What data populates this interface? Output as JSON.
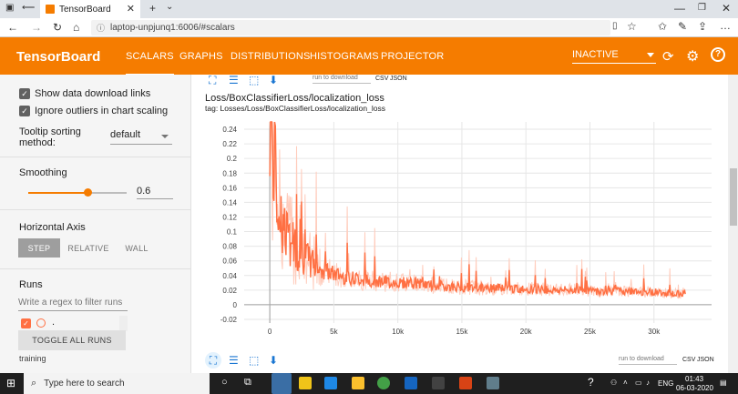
{
  "browser": {
    "tab_title": "TensorBoard",
    "url": "laptop-unpjunq1:6006/#scalars"
  },
  "header": {
    "brand": "TensorBoard",
    "tabs": [
      {
        "label": "SCALARS",
        "active": true
      },
      {
        "label": "GRAPHS",
        "active": false
      },
      {
        "label": "DISTRIBUTIONS",
        "active": false
      },
      {
        "label": "HISTOGRAMS",
        "active": false
      },
      {
        "label": "PROJECTOR",
        "active": false
      }
    ],
    "status_select": "INACTIVE",
    "accent_color": "#f57c00"
  },
  "sidebar": {
    "show_download_links": {
      "label": "Show data download links",
      "checked": true
    },
    "ignore_outliers": {
      "label": "Ignore outliers in chart scaling",
      "checked": true
    },
    "tooltip_sorting": {
      "label": "Tooltip sorting method:",
      "value": "default"
    },
    "smoothing": {
      "title": "Smoothing",
      "value": "0.6",
      "fraction": 0.6
    },
    "horizontal_axis": {
      "title": "Horizontal Axis",
      "options": [
        {
          "label": "STEP",
          "selected": true
        },
        {
          "label": "RELATIVE",
          "selected": false
        },
        {
          "label": "WALL",
          "selected": false
        }
      ]
    },
    "runs": {
      "title": "Runs",
      "filter_placeholder": "Write a regex to filter runs",
      "run_label": ".",
      "toggle_all": "TOGGLE ALL RUNS",
      "footer": "training"
    }
  },
  "main": {
    "download_select": "run to download",
    "download_formats": [
      "CSV",
      "JSON"
    ],
    "chart_title": "Loss/BoxClassifierLoss/localization_loss",
    "chart_tag": "tag: Losses/Loss/BoxClassifierLoss/localization_loss"
  },
  "chart_data": {
    "type": "line",
    "title": "Loss/BoxClassifierLoss/localization_loss",
    "xlabel": "",
    "ylabel": "",
    "x_ticks": [
      "0",
      "5k",
      "10k",
      "15k",
      "20k",
      "25k",
      "30k"
    ],
    "y_ticks": [
      "-0.02",
      "0",
      "0.02",
      "0.04",
      "0.06",
      "0.08",
      "0.1",
      "0.12",
      "0.14",
      "0.16",
      "0.18",
      "0.2",
      "0.22",
      "0.24"
    ],
    "xlim": [
      -2000,
      34500
    ],
    "ylim": [
      -0.025,
      0.25
    ],
    "grid": true,
    "series": [
      {
        "name": ".",
        "color": "#ff7043",
        "x": [
          0,
          300,
          600,
          900,
          1200,
          1600,
          2000,
          2500,
          3000,
          3500,
          4000,
          5000,
          6000,
          7000,
          8000,
          9000,
          10000,
          11000,
          12000,
          13000,
          14000,
          15000,
          16000,
          17000,
          18000,
          19000,
          20000,
          21000,
          22000,
          23000,
          24000,
          25000,
          26000,
          27000,
          28000,
          29000,
          30000,
          31000,
          32000,
          32500
        ],
        "y": [
          0.26,
          0.2,
          0.15,
          0.12,
          0.1,
          0.09,
          0.08,
          0.065,
          0.06,
          0.055,
          0.048,
          0.042,
          0.038,
          0.035,
          0.033,
          0.032,
          0.03,
          0.03,
          0.028,
          0.026,
          0.025,
          0.024,
          0.024,
          0.022,
          0.023,
          0.022,
          0.021,
          0.022,
          0.02,
          0.02,
          0.021,
          0.019,
          0.018,
          0.019,
          0.018,
          0.017,
          0.018,
          0.016,
          0.015,
          0.017
        ]
      }
    ]
  },
  "taskbar": {
    "search_placeholder": "Type here to search",
    "language": "ENG",
    "time": "01:43",
    "date": "06-03-2020"
  }
}
